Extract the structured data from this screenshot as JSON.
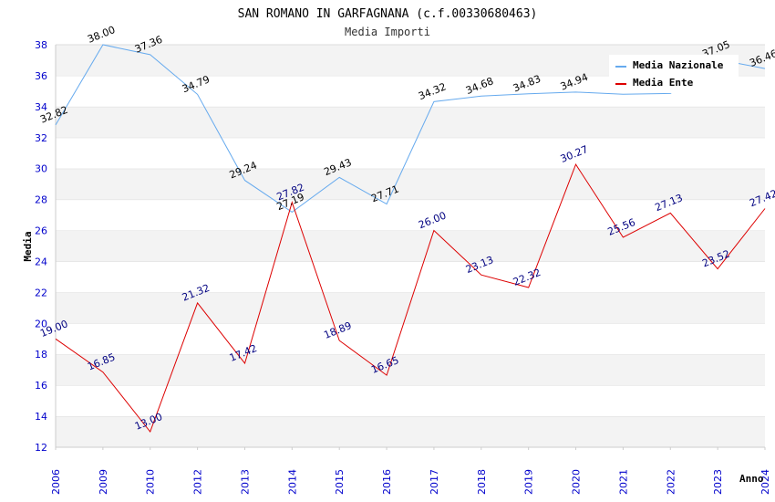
{
  "chart_data": {
    "type": "line",
    "title": "SAN ROMANO IN GARFAGNANA (c.f.00330680463)",
    "subtitle": "Media Importi",
    "xlabel": "Anno",
    "ylabel": "Media",
    "ylim": [
      12,
      38
    ],
    "ytick_step": 2,
    "grid": "horizontal bands",
    "legend_position": "top-right",
    "categories": [
      "2006",
      "2009",
      "2010",
      "2012",
      "2013",
      "2014",
      "2015",
      "2016",
      "2017",
      "2018",
      "2019",
      "2020",
      "2021",
      "2022",
      "2023",
      "2024"
    ],
    "series": [
      {
        "name": "Media Nazionale",
        "color": "#66aaee",
        "label_color": "#000000",
        "values": [
          32.82,
          38.0,
          37.36,
          34.79,
          29.24,
          27.19,
          29.43,
          27.71,
          34.32,
          34.68,
          34.83,
          34.94,
          34.8,
          34.85,
          37.05,
          36.46
        ],
        "labels": [
          "32.82",
          "38.00",
          "37.36",
          "34.79",
          "29.24",
          "27.19",
          "29.43",
          "27.71",
          "34.32",
          "34.68",
          "34.83",
          "34.94",
          "",
          "",
          "37.05",
          "36.46"
        ]
      },
      {
        "name": "Media Ente",
        "color": "#dd0000",
        "label_color": "#000080",
        "values": [
          19.0,
          16.85,
          13.0,
          21.32,
          17.42,
          27.82,
          18.89,
          16.65,
          26.0,
          23.13,
          22.32,
          30.27,
          25.56,
          27.13,
          23.52,
          27.42
        ],
        "labels": [
          "19.00",
          "16.85",
          "13.00",
          "21.32",
          "17.42",
          "27.82",
          "18.89",
          "16.65",
          "26.00",
          "23.13",
          "22.32",
          "30.27",
          "25.56",
          "27.13",
          "23.52",
          "27.42"
        ]
      }
    ]
  }
}
